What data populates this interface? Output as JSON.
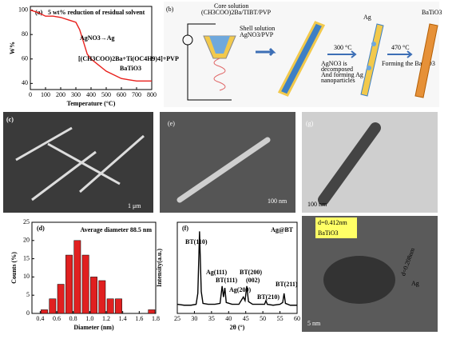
{
  "chart_data": [
    {
      "type": "line",
      "panel_label": "(a)",
      "x_label": "Temperature (°C)",
      "y_label": "W%",
      "x": [
        0,
        50,
        100,
        150,
        200,
        250,
        300,
        325,
        350,
        375,
        400,
        450,
        500,
        550,
        600,
        650,
        700,
        750,
        800
      ],
      "series": [
        {
          "color": "#e8201c",
          "values": [
            100,
            98,
            95,
            95,
            94,
            92,
            90,
            84,
            74,
            64,
            60,
            55,
            50,
            47,
            44,
            43,
            42,
            42,
            42
          ]
        }
      ],
      "xlim": [
        0,
        800
      ],
      "xticks": [
        0,
        100,
        200,
        300,
        400,
        500,
        600,
        700,
        800
      ],
      "ylim": [
        35,
        103
      ],
      "yticks": [
        40,
        60,
        80,
        100
      ],
      "annotations": [
        "5 wt% reduction of residual solvent",
        "AgNO3→Ag",
        "[(CH3COO)2Ba+Ti(OC4H9)4]+PVP",
        "BaTiO3"
      ]
    },
    {
      "type": "histogram",
      "panel_label": "(d)",
      "title": "Average diameter 88.5 nm",
      "x_label": "Diameter (nm)",
      "y_label": "Counts (%)",
      "bins": [
        0.4,
        0.5,
        0.6,
        0.7,
        0.8,
        0.9,
        1.0,
        1.1,
        1.2,
        1.3,
        1.4,
        1.5,
        1.6,
        1.7,
        1.8
      ],
      "values": [
        1,
        4,
        8,
        16,
        20,
        16,
        10,
        9,
        4,
        4,
        0,
        0,
        0,
        1
      ],
      "color": "#e02020",
      "xlim": [
        0.3,
        1.8
      ],
      "xticks": [
        0.4,
        0.6,
        0.8,
        {
          "value": 1,
          "label": "1.0"
        },
        1.2,
        1.4,
        1.6,
        1.8
      ],
      "ylim": [
        0,
        25
      ],
      "yticks": [
        0,
        5,
        10,
        15,
        20,
        25
      ]
    },
    {
      "type": "line",
      "panel_label": "(f)",
      "title": "Ag@BT",
      "x_label": "2θ (°)",
      "y_label": "Intensity(a.u.)",
      "x": [
        25,
        27,
        29,
        30.5,
        31,
        31.5,
        32,
        32.5,
        34,
        36,
        37.5,
        38.1,
        38.5,
        38.9,
        39.3,
        41,
        43,
        44.3,
        44.8,
        45.3,
        45.8,
        47,
        49,
        50.5,
        50.9,
        51.3,
        53,
        55,
        55.8,
        56.2,
        56.6,
        58,
        60
      ],
      "series": [
        {
          "color": "#000000",
          "values": [
            10,
            9,
            9,
            10,
            22,
            90,
            24,
            11,
            10,
            10,
            11,
            30,
            18,
            28,
            12,
            10,
            10,
            18,
            14,
            30,
            13,
            10,
            10,
            10,
            14,
            10,
            9,
            10,
            12,
            22,
            11,
            9,
            9
          ]
        }
      ],
      "xlim": [
        25,
        60
      ],
      "xticks": [
        25,
        30,
        35,
        40,
        45,
        50,
        55,
        60
      ],
      "ylim": [
        0,
        100
      ],
      "annotations": [
        "BT(110)",
        "Ag(111)",
        "BT(111)",
        "Ag(200)",
        "BT(200)",
        "(002)",
        "BT(210)",
        "BT(211)"
      ]
    }
  ],
  "schematic": {
    "panel_label": "(b)",
    "core": "Core solution",
    "core_formula": "(CH3COO)2Ba/TIBT/PVP",
    "shell": "Shell solution",
    "shell_formula": "AgNO3/PVP",
    "t1": "300 °C",
    "step1_a": "AgNO3 is",
    "step1_b": "decomposed",
    "step1_c": "And forming Ag",
    "step1_d": "nanoparticles",
    "ag": "Ag",
    "t2": "470 °C",
    "step2": "Forming the BaTiO3",
    "bt": "BaTiO3"
  },
  "images": {
    "c": {
      "label": "(c)",
      "scale": "1 μm"
    },
    "e": {
      "label": "(e)",
      "scale": "100 nm"
    },
    "g": {
      "label": "(g)",
      "scale": "100 nm"
    },
    "h": {
      "d1": "d=0.412nm",
      "m1": "BaTiO3",
      "d2": "d=0.208nm",
      "m2": "Ag",
      "scale": "5 nm"
    }
  }
}
